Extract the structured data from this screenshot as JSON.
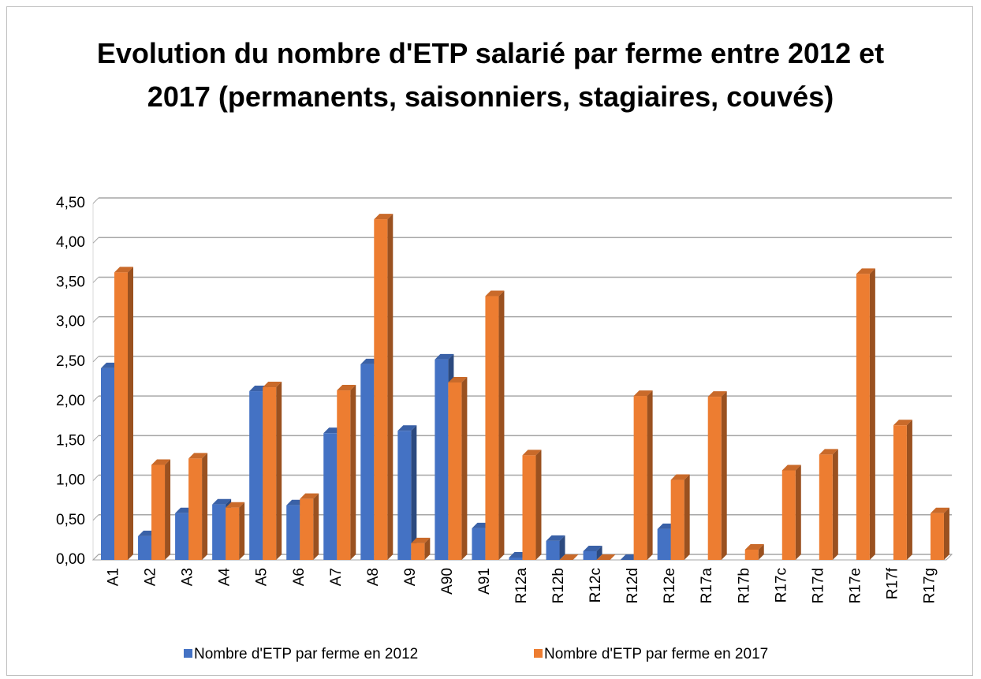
{
  "chart_data": {
    "type": "bar3d",
    "title": "Evolution du nombre d'ETP salarié par ferme entre 2012 et 2017  (permanents, saisonniers, stagiaires, couvés)",
    "categories": [
      "A1",
      "A2",
      "A3",
      "A4",
      "A5",
      "A6",
      "A7",
      "A8",
      "A9",
      "A90",
      "A91",
      "R12a",
      "R12b",
      "R12c",
      "R12d",
      "R12e",
      "R17a",
      "R17b",
      "R17c",
      "R17d",
      "R17e",
      "R17f",
      "R17g"
    ],
    "series": [
      {
        "name": "Nombre d'ETP par ferme en 2012",
        "color": "#4472c4",
        "values": [
          2.42,
          0.3,
          0.59,
          0.7,
          2.13,
          0.69,
          1.6,
          2.47,
          1.63,
          2.53,
          0.4,
          0.03,
          0.24,
          0.11,
          0,
          0.39,
          null,
          null,
          null,
          null,
          null,
          null,
          null
        ]
      },
      {
        "name": "Nombre d'ETP par ferme en 2017",
        "color": "#ed7d31",
        "values": [
          3.63,
          1.2,
          1.28,
          0.66,
          2.18,
          0.77,
          2.14,
          4.3,
          0.21,
          2.24,
          3.33,
          1.32,
          0,
          0,
          2.07,
          1.01,
          2.06,
          0.13,
          1.13,
          1.33,
          3.61,
          1.7,
          0.59
        ]
      }
    ],
    "ylim": [
      0,
      4.5
    ],
    "yticks": [
      {
        "value": 0,
        "label": "0,00"
      },
      {
        "value": 0.5,
        "label": "0,50"
      },
      {
        "value": 1,
        "label": "1,00"
      },
      {
        "value": 1.5,
        "label": "1,50"
      },
      {
        "value": 2,
        "label": "2,00"
      },
      {
        "value": 2.5,
        "label": "2,50"
      },
      {
        "value": 3,
        "label": "3,00"
      },
      {
        "value": 3.5,
        "label": "3,50"
      },
      {
        "value": 4,
        "label": "4,00"
      },
      {
        "value": 4.5,
        "label": "4,50"
      }
    ],
    "grid": true,
    "legend": "bottom"
  }
}
